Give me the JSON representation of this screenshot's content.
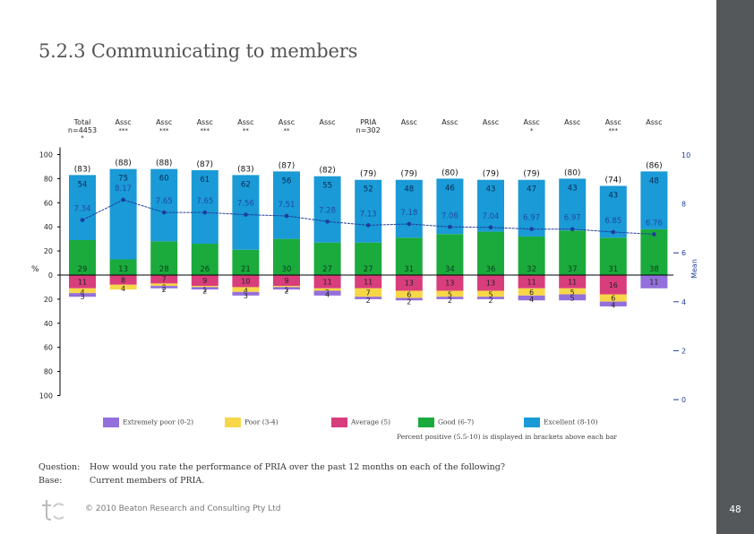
{
  "slide": {
    "title": "5.2.3 Communicating to members",
    "page_number": "48",
    "question_label": "Question:",
    "question_text": "How would you rate the performance of PRIA over the past 12 months on each of the following?",
    "base_label": "Base:",
    "base_text": "Current members of PRIA.",
    "copyright": "© 2010 Beaton Research and Consulting Pty Ltd"
  },
  "chart_data": {
    "type": "bar",
    "stacked": "diverging",
    "title": "",
    "ylabel": "%",
    "y2label": "Mean",
    "ylim": [
      -100,
      100
    ],
    "y2lim": [
      0,
      10
    ],
    "yticks": [
      "100",
      "80",
      "60",
      "40",
      "20",
      "0",
      "20",
      "40",
      "60",
      "80",
      "100"
    ],
    "y2ticks": [
      "10",
      "8",
      "6",
      "4",
      "2",
      "0"
    ],
    "column_headers": [
      {
        "label": "Total",
        "sub": "n=4453",
        "sig": "*"
      },
      {
        "label": "Assc",
        "sub": "",
        "sig": "***"
      },
      {
        "label": "Assc",
        "sub": "",
        "sig": "***"
      },
      {
        "label": "Assc",
        "sub": "",
        "sig": "***"
      },
      {
        "label": "Assc",
        "sub": "",
        "sig": "**"
      },
      {
        "label": "Assc",
        "sub": "",
        "sig": "**"
      },
      {
        "label": "Assc",
        "sub": "",
        "sig": ""
      },
      {
        "label": "PRIA",
        "sub": "n=302",
        "sig": ""
      },
      {
        "label": "Assc",
        "sub": "",
        "sig": ""
      },
      {
        "label": "Assc",
        "sub": "",
        "sig": ""
      },
      {
        "label": "Assc",
        "sub": "",
        "sig": ""
      },
      {
        "label": "Assc",
        "sub": "",
        "sig": "*"
      },
      {
        "label": "Assc",
        "sub": "",
        "sig": ""
      },
      {
        "label": "Assc",
        "sub": "",
        "sig": "***"
      },
      {
        "label": "Assc",
        "sub": "",
        "sig": ""
      }
    ],
    "percent_positive": [
      "(83)",
      "(88)",
      "(88)",
      "(87)",
      "(83)",
      "(87)",
      "(82)",
      "(79)",
      "(79)",
      "(80)",
      "(79)",
      "(79)",
      "(80)",
      "(74)",
      "(86)"
    ],
    "series": [
      {
        "name": "Excellent (8-10)",
        "color": "#1a9ad6",
        "direction": "positive",
        "values": [
          54,
          75,
          60,
          61,
          62,
          56,
          55,
          52,
          48,
          46,
          43,
          47,
          43,
          43,
          48
        ]
      },
      {
        "name": "Good (6-7)",
        "color": "#1aab3c",
        "direction": "positive",
        "values": [
          29,
          13,
          28,
          26,
          21,
          30,
          27,
          27,
          31,
          34,
          36,
          32,
          37,
          31,
          38
        ]
      },
      {
        "name": "Average (5)",
        "color": "#d83d7c",
        "direction": "negative",
        "values": [
          11,
          8,
          7,
          9,
          10,
          9,
          11,
          11,
          13,
          13,
          13,
          11,
          11,
          16,
          0
        ]
      },
      {
        "name": "Poor (3-4)",
        "color": "#f7d748",
        "direction": "negative",
        "values": [
          4,
          4,
          2,
          1,
          4,
          1,
          2,
          7,
          6,
          5,
          5,
          6,
          5,
          6,
          0
        ]
      },
      {
        "name": "Extremely poor (0-2)",
        "color": "#9370db",
        "direction": "negative",
        "values": [
          3,
          0,
          2,
          2,
          3,
          2,
          4,
          2,
          2,
          2,
          2,
          4,
          5,
          4,
          11
        ]
      }
    ],
    "mean": {
      "name": "Mean",
      "color": "#1f3d99",
      "values": [
        7.34,
        8.17,
        7.65,
        7.65,
        7.56,
        7.51,
        7.28,
        7.13,
        7.18,
        7.06,
        7.04,
        6.97,
        6.97,
        6.85,
        6.76
      ]
    },
    "legend": [
      "Extremely poor (0-2)",
      "Poor (3-4)",
      "Average (5)",
      "Good (6-7)",
      "Excellent (8-10)"
    ],
    "legend_placement": "bottom",
    "note": "Percent positive (5.5-10) is displayed in brackets above each bar"
  }
}
